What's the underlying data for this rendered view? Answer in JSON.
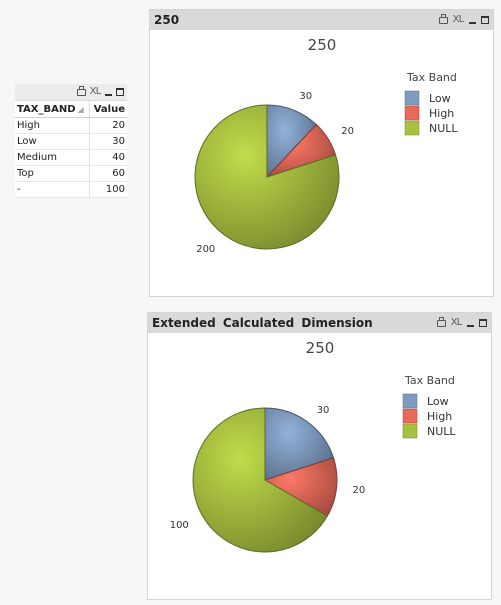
{
  "table": {
    "icons": [
      "print-icon",
      "xl-export-icon",
      "minimize-icon",
      "maximize-icon"
    ],
    "xl_label": "XL",
    "headers": [
      "TAX_BAND",
      "Value"
    ],
    "rows": [
      {
        "band": "High",
        "value": "20"
      },
      {
        "band": "Low",
        "value": "30"
      },
      {
        "band": "Medium",
        "value": "40"
      },
      {
        "band": "Top",
        "value": "60"
      },
      {
        "band": "-",
        "value": "100"
      }
    ]
  },
  "charts": [
    {
      "caption": "250",
      "xl_label": "XL",
      "chart_title": "250",
      "legend_title": "Tax Band",
      "slice_labels": [
        "30",
        "20",
        "200"
      ]
    },
    {
      "caption": "Extended Calculated Dimension",
      "xl_label": "XL",
      "chart_title": "250",
      "legend_title": "Tax Band",
      "slice_labels": [
        "30",
        "20",
        "100"
      ]
    }
  ],
  "chart_data": [
    {
      "type": "pie",
      "title": "250",
      "legend_title": "Tax Band",
      "legend_placement": "top-right",
      "categories": [
        "Low",
        "High",
        "NULL"
      ],
      "values": [
        30,
        20,
        200
      ],
      "colors": [
        "#7f9bbf",
        "#e8695a",
        "#a8c040"
      ]
    },
    {
      "type": "pie",
      "title": "250",
      "legend_title": "Tax Band",
      "legend_placement": "top-right",
      "categories": [
        "Low",
        "High",
        "NULL"
      ],
      "values": [
        30,
        20,
        100
      ],
      "colors": [
        "#7f9bbf",
        "#e8695a",
        "#a8c040"
      ]
    }
  ]
}
